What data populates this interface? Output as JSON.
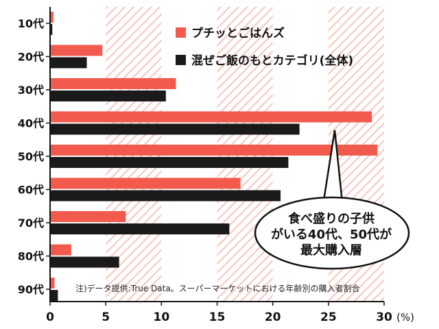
{
  "chart_data": {
    "type": "bar",
    "orientation": "horizontal",
    "categories": [
      "10代",
      "20代",
      "30代",
      "40代",
      "50代",
      "60代",
      "70代",
      "80代",
      "90代"
    ],
    "series": [
      {
        "name": "プチッとごはんズ",
        "color": "#f15a4d",
        "values": [
          0.3,
          4.7,
          11.3,
          28.9,
          29.4,
          17.1,
          6.8,
          1.9,
          0.4
        ]
      },
      {
        "name": "混ぜご飯のもとカテゴリ(全体)",
        "color": "#1a1a1a",
        "values": [
          0.2,
          3.3,
          10.4,
          22.4,
          21.4,
          20.7,
          16.1,
          6.2,
          0.7
        ]
      }
    ],
    "xlim": [
      0,
      30
    ],
    "x_ticks": [
      "0",
      "5",
      "10",
      "15",
      "20",
      "25",
      "30"
    ],
    "x_unit": "(%)",
    "legend_position": "top-right",
    "grid": "hatched bands every other 5%"
  },
  "callout": {
    "lines": [
      "食べ盛りの子供",
      "がいる40代、50代が",
      "最大購入層"
    ]
  },
  "footnote": "注)データ提供:True Data。スーパーマーケットにおける年齢別の購入者割合"
}
